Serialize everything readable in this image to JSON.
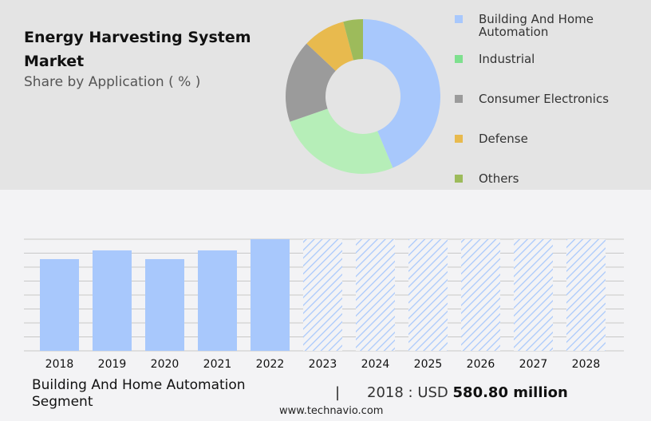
{
  "title": "Energy Harvesting System Market",
  "subtitle": "Share by Application ( % )",
  "chart_data": [
    {
      "type": "pie",
      "style": "donut",
      "title": "Energy Harvesting System Market",
      "subtitle": "Share by Application ( % )",
      "legend_placement": "right",
      "categories": [
        "Building And Home Automation",
        "Industrial",
        "Consumer Electronics",
        "Defense",
        "Others"
      ],
      "values": [
        43.7,
        26.0,
        17.3,
        8.9,
        4.1
      ],
      "colors": [
        "#a8c8fc",
        "#b6eeb8",
        "#9b9b9b",
        "#e8ba4e",
        "#9dbb5b"
      ],
      "legend_colors": [
        "#a8c8fc",
        "#7ee08e",
        "#9b9b9b",
        "#e8ba4e",
        "#9dbb5b"
      ]
    },
    {
      "type": "bar",
      "categories": [
        "2018",
        "2019",
        "2020",
        "2021",
        "2022",
        "2023",
        "2024",
        "2025",
        "2026",
        "2027",
        "2028"
      ],
      "values": [
        580.8,
        636,
        580.8,
        636,
        707,
        707,
        707,
        707,
        707,
        707,
        707
      ],
      "forecast_from": "2023",
      "ylim": [
        0,
        707
      ],
      "grid": true,
      "color": "#a8c8fc"
    }
  ],
  "footer": {
    "segment": "Building And Home Automation Segment",
    "separator": "|",
    "value_prefix": "2018 : USD",
    "value": "580.80 million",
    "website": "www.technavio.com"
  }
}
